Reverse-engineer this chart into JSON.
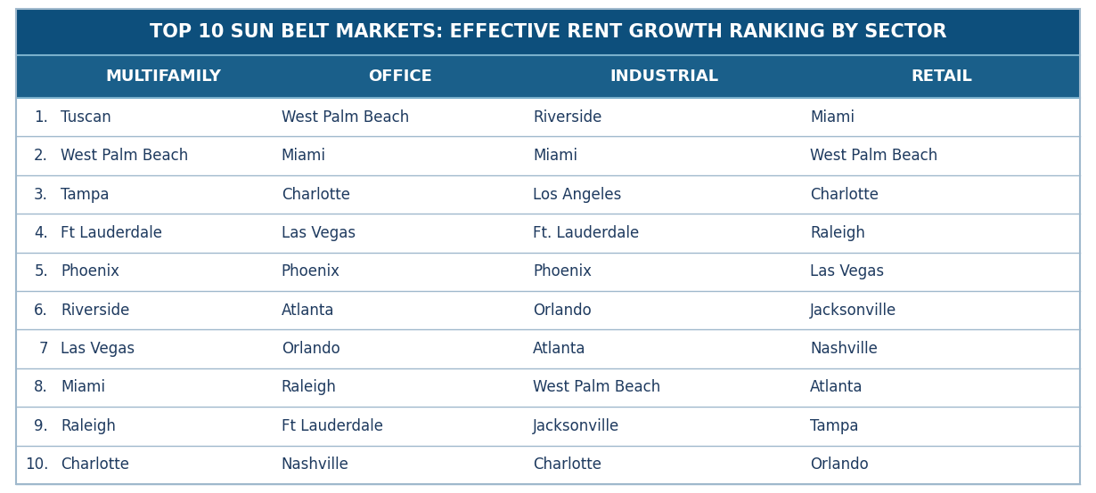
{
  "title": "TOP 10 SUN BELT MARKETS: EFFECTIVE RENT GROWTH RANKING BY SECTOR",
  "title_bg": "#0d4f7c",
  "header_bg": "#1a5f8a",
  "header_text_color": "#ffffff",
  "row_bg": "#ffffff",
  "border_color": "#9fb8cc",
  "outer_border_color": "#9fb8cc",
  "text_color": "#1e3a5f",
  "rank_color": "#1e3a5f",
  "columns": [
    "MULTIFAMILY",
    "OFFICE",
    "INDUSTRIAL",
    "RETAIL"
  ],
  "ranks": [
    "1.",
    "2.",
    "3.",
    "4.",
    "5.",
    "6.",
    "7",
    "8.",
    "9.",
    "10."
  ],
  "multifamily": [
    "Tuscan",
    "West Palm Beach",
    "Tampa",
    "Ft Lauderdale",
    "Phoenix",
    "Riverside",
    "Las Vegas",
    "Miami",
    "Raleigh",
    "Charlotte"
  ],
  "office": [
    "West Palm Beach",
    "Miami",
    "Charlotte",
    "Las Vegas",
    "Phoenix",
    "Atlanta",
    "Orlando",
    "Raleigh",
    "Ft Lauderdale",
    "Nashville"
  ],
  "industrial": [
    "Riverside",
    "Miami",
    "Los Angeles",
    "Ft. Lauderdale",
    "Phoenix",
    "Orlando",
    "Atlanta",
    "West Palm Beach",
    "Jacksonville",
    "Charlotte"
  ],
  "retail": [
    "Miami",
    "West Palm Beach",
    "Charlotte",
    "Raleigh",
    "Las Vegas",
    "Jacksonville",
    "Nashville",
    "Atlanta",
    "Tampa",
    "Orlando"
  ],
  "title_font_size": 15,
  "header_font_size": 13,
  "cell_font_size": 12,
  "fig_width": 12.3,
  "fig_height": 5.54,
  "dpi": 100
}
